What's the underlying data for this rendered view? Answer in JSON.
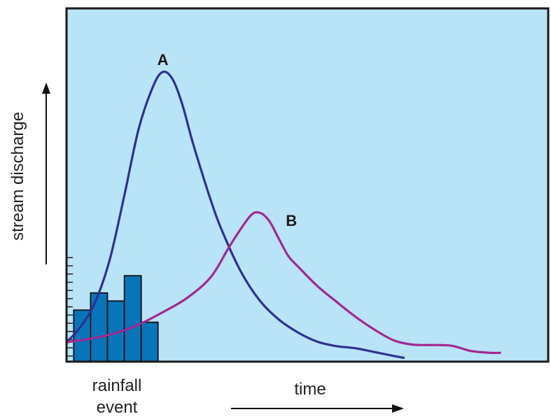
{
  "chart_data": {
    "type": "line",
    "xlabel": "time",
    "ylabel": "stream discharge",
    "xlim": [
      0,
      100
    ],
    "ylim": [
      0,
      100
    ],
    "grid": false,
    "colors": {
      "plot_background": "#b9e3f7",
      "frame": "#1a1a1a",
      "hydrograph_a": "#2e3192",
      "hydrograph_b": "#a3288f",
      "rainfall_fill": "#0a74b9",
      "rainfall_edge": "#111111"
    },
    "series": [
      {
        "name": "A",
        "color": "#2e3192",
        "x": [
          0,
          3,
          6,
          9,
          12,
          15,
          18,
          20,
          22,
          24,
          26,
          28,
          30,
          32,
          36,
          40,
          44,
          48,
          52,
          56,
          60,
          64,
          68,
          70
        ],
        "y": [
          5.5,
          10,
          17,
          29,
          47,
          66,
          78,
          82,
          80,
          73,
          63,
          54,
          45.5,
          38,
          26,
          17.5,
          12,
          8.3,
          5.7,
          4.4,
          3.8,
          2.7,
          1.6,
          1.1
        ]
      },
      {
        "name": "B",
        "color": "#a3288f",
        "x": [
          0,
          5,
          10,
          15,
          20,
          25,
          30,
          34,
          38,
          40,
          42,
          44,
          46,
          48,
          52,
          56,
          60,
          64,
          68,
          72,
          76,
          80,
          84,
          88,
          90
        ],
        "y": [
          5.5,
          6.5,
          8,
          10.5,
          14,
          18,
          24,
          33,
          41,
          42.2,
          40,
          35,
          30,
          27,
          21.5,
          17,
          12.7,
          9,
          6,
          4.8,
          4.7,
          4.5,
          3,
          2.5,
          2.5
        ]
      }
    ],
    "rainfall": {
      "label_line1": "rainfall",
      "label_line2": "event",
      "tick_count": 13,
      "bars": [
        {
          "x": 1.5,
          "value": 51
        },
        {
          "x": 5.0,
          "value": 68
        },
        {
          "x": 8.5,
          "value": 60
        },
        {
          "x": 12.0,
          "value": 85
        },
        {
          "x": 15.5,
          "value": 39
        }
      ],
      "bar_width": 3.5,
      "bar_value_max": 100,
      "bar_height_fraction_of_plot": 0.286
    },
    "annotations": [
      {
        "text": "A",
        "series": "A"
      },
      {
        "text": "B",
        "series": "B"
      }
    ]
  }
}
